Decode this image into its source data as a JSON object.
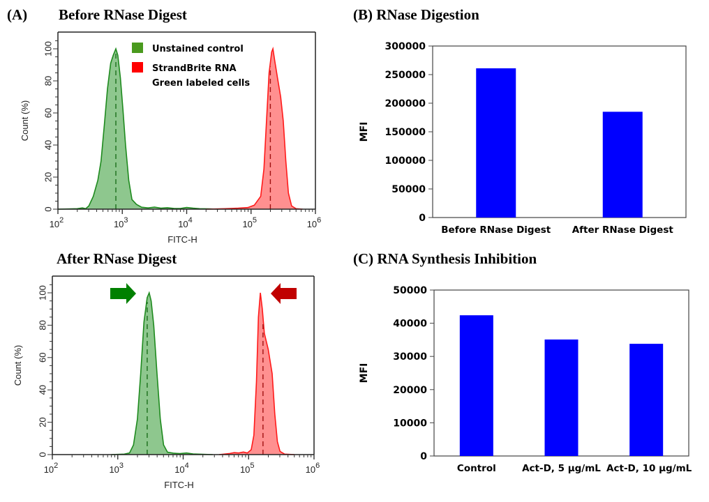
{
  "panel_labels": {
    "a_label": "(A)",
    "a_top_title": "Before RNase Digest",
    "a_bottom_title": "After RNase Digest",
    "b_title": "(B) RNase Digestion",
    "c_title": "(C) RNA Synthesis Inhibition"
  },
  "colors": {
    "green_line": "#1e8a1e",
    "green_fill": "#88c488",
    "green_legend": "#4a9a1e",
    "red_line": "#ff1a1a",
    "red_fill": "#ff8a8a",
    "red_legend": "#ff0000",
    "green_arrow": "#008000",
    "red_arrow": "#c00000",
    "bar": "#0000ff"
  },
  "chart_data": [
    {
      "id": "hist_before",
      "type": "area",
      "title": "Before RNase Digest",
      "xlabel": "FITC-H",
      "ylabel": "Count  (%)",
      "xscale": "log",
      "xlim_log10": [
        2,
        6
      ],
      "ylim": [
        0,
        108
      ],
      "xticks": [
        {
          "exp": "2"
        },
        {
          "exp": "3"
        },
        {
          "exp": "4"
        },
        {
          "exp": "5"
        },
        {
          "exp": "6"
        }
      ],
      "xtick_base": "10",
      "yticks": [
        "0",
        "20",
        "40",
        "60",
        "80",
        "100"
      ],
      "legend": {
        "position": "top-center",
        "entries": [
          {
            "label_lines": [
              "Unstained control"
            ],
            "color_key": "green_legend"
          },
          {
            "label_lines": [
              "StrandBrite RNA",
              "Green labeled cells"
            ],
            "color_key": "red_legend"
          }
        ]
      },
      "series": [
        {
          "name": "Unstained control",
          "color": "green",
          "median_log10": 2.9,
          "points_log10x_y": [
            [
              2.0,
              0
            ],
            [
              2.3,
              0.3
            ],
            [
              2.38,
              0.8
            ],
            [
              2.43,
              0.3
            ],
            [
              2.48,
              2
            ],
            [
              2.55,
              8
            ],
            [
              2.62,
              18
            ],
            [
              2.67,
              30
            ],
            [
              2.72,
              52
            ],
            [
              2.77,
              75
            ],
            [
              2.82,
              91
            ],
            [
              2.86,
              96
            ],
            [
              2.9,
              100
            ],
            [
              2.93,
              96
            ],
            [
              2.97,
              82
            ],
            [
              3.01,
              62
            ],
            [
              3.05,
              40
            ],
            [
              3.1,
              18
            ],
            [
              3.15,
              6
            ],
            [
              3.22,
              3
            ],
            [
              3.3,
              1.2
            ],
            [
              3.4,
              0.8
            ],
            [
              3.5,
              1.3
            ],
            [
              3.6,
              0.6
            ],
            [
              3.7,
              0.9
            ],
            [
              3.8,
              0.5
            ],
            [
              3.9,
              0.4
            ],
            [
              4.0,
              1.1
            ],
            [
              4.1,
              0.6
            ],
            [
              4.2,
              0.3
            ],
            [
              4.35,
              0.2
            ],
            [
              4.5,
              0
            ]
          ]
        },
        {
          "name": "StrandBrite RNA Green labeled cells",
          "color": "red",
          "median_log10": 5.3,
          "points_log10x_y": [
            [
              4.3,
              0
            ],
            [
              4.6,
              0.3
            ],
            [
              4.8,
              0.6
            ],
            [
              4.95,
              1
            ],
            [
              5.05,
              2.5
            ],
            [
              5.15,
              8
            ],
            [
              5.2,
              25
            ],
            [
              5.24,
              55
            ],
            [
              5.28,
              85
            ],
            [
              5.32,
              98
            ],
            [
              5.34,
              100
            ],
            [
              5.37,
              92
            ],
            [
              5.41,
              82
            ],
            [
              5.46,
              70
            ],
            [
              5.5,
              55
            ],
            [
              5.54,
              30
            ],
            [
              5.58,
              10
            ],
            [
              5.63,
              2
            ],
            [
              5.7,
              0.3
            ],
            [
              5.8,
              0
            ]
          ]
        }
      ]
    },
    {
      "id": "hist_after",
      "type": "area",
      "title": "After RNase Digest",
      "xlabel": "FITC-H",
      "ylabel": "Count  (%)",
      "xscale": "log",
      "xlim_log10": [
        2,
        6
      ],
      "ylim": [
        0,
        108
      ],
      "xticks": [
        {
          "exp": "2"
        },
        {
          "exp": "3"
        },
        {
          "exp": "4"
        },
        {
          "exp": "5"
        },
        {
          "exp": "6"
        }
      ],
      "xtick_base": "10",
      "yticks": [
        "0",
        "20",
        "40",
        "60",
        "80",
        "100"
      ],
      "annotations": [
        {
          "type": "arrow-right",
          "color_key": "green_arrow",
          "points_to": "green peak"
        },
        {
          "type": "arrow-left",
          "color_key": "red_arrow",
          "points_to": "red peak"
        }
      ],
      "series": [
        {
          "name": "Unstained control",
          "color": "green",
          "median_log10": 3.45,
          "points_log10x_y": [
            [
              2.9,
              0
            ],
            [
              3.1,
              0.3
            ],
            [
              3.18,
              1
            ],
            [
              3.24,
              6
            ],
            [
              3.3,
              22
            ],
            [
              3.35,
              50
            ],
            [
              3.4,
              82
            ],
            [
              3.45,
              97
            ],
            [
              3.48,
              100
            ],
            [
              3.51,
              95
            ],
            [
              3.55,
              80
            ],
            [
              3.6,
              50
            ],
            [
              3.65,
              22
            ],
            [
              3.7,
              6
            ],
            [
              3.76,
              1.5
            ],
            [
              3.85,
              0.9
            ],
            [
              3.95,
              0.6
            ],
            [
              4.05,
              1
            ],
            [
              4.15,
              0.4
            ],
            [
              4.3,
              0.2
            ],
            [
              4.45,
              0
            ]
          ]
        },
        {
          "name": "StrandBrite RNA Green labeled cells",
          "color": "red",
          "median_log10": 5.22,
          "points_log10x_y": [
            [
              4.55,
              0
            ],
            [
              4.7,
              0.6
            ],
            [
              4.78,
              1.2
            ],
            [
              4.85,
              1
            ],
            [
              4.92,
              1.6
            ],
            [
              4.98,
              1
            ],
            [
              5.04,
              3
            ],
            [
              5.08,
              12
            ],
            [
              5.12,
              45
            ],
            [
              5.15,
              85
            ],
            [
              5.18,
              100
            ],
            [
              5.21,
              90
            ],
            [
              5.24,
              75
            ],
            [
              5.3,
              65
            ],
            [
              5.36,
              50
            ],
            [
              5.4,
              25
            ],
            [
              5.44,
              8
            ],
            [
              5.48,
              2
            ],
            [
              5.55,
              0.3
            ],
            [
              5.7,
              0
            ]
          ]
        }
      ]
    },
    {
      "id": "bar_rnase",
      "type": "bar",
      "title": "(B) RNase Digestion",
      "xlabel": "",
      "ylabel": "MFI",
      "ylim": [
        0,
        300000
      ],
      "yticks": [
        "0",
        "50000",
        "100000",
        "150000",
        "200000",
        "250000",
        "300000"
      ],
      "categories": [
        "Before RNase Digest",
        "After RNase Digest"
      ],
      "values": [
        261000,
        185000
      ]
    },
    {
      "id": "bar_inhibition",
      "type": "bar",
      "title": "(C) RNA Synthesis Inhibition",
      "xlabel": "",
      "ylabel": "MFI",
      "ylim": [
        0,
        50000
      ],
      "yticks": [
        "0",
        "10000",
        "20000",
        "30000",
        "40000",
        "50000"
      ],
      "categories": [
        "Control",
        "Act-D, 5 µg/mL",
        "Act-D, 10 µg/mL"
      ],
      "values": [
        42400,
        35100,
        33800
      ]
    }
  ]
}
